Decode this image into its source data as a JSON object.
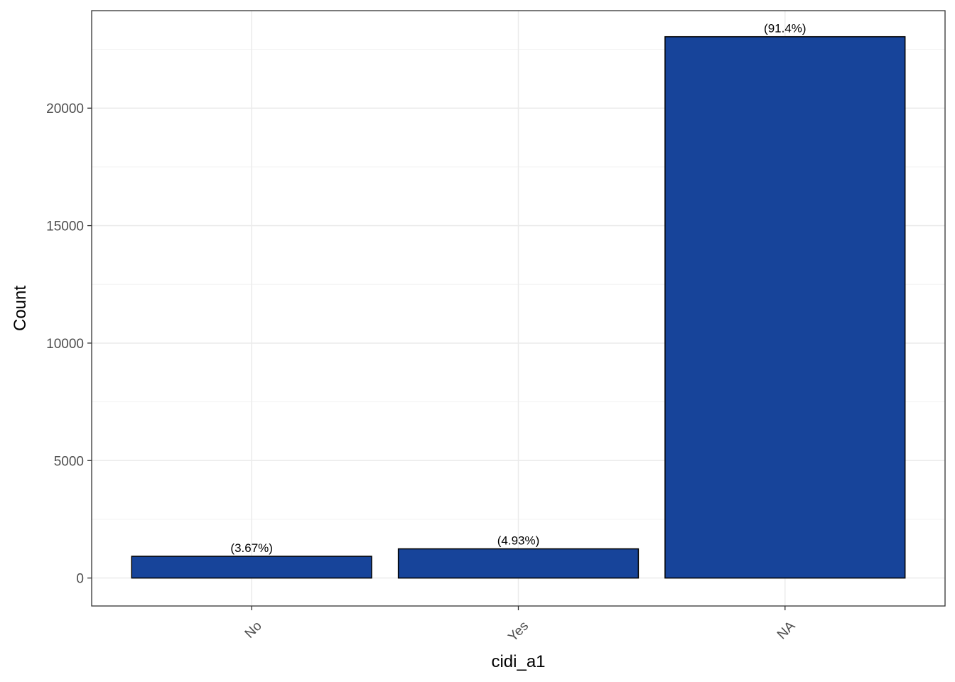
{
  "chart_data": {
    "type": "bar",
    "xlabel": "cidi_a1",
    "ylabel": "Count",
    "categories": [
      "No",
      "Yes",
      "NA"
    ],
    "values": [
      925,
      1242,
      23040
    ],
    "bar_labels": [
      "(3.67%)",
      "(4.93%)",
      "(91.4%)"
    ],
    "ylim": [
      -1190,
      24150
    ],
    "yticks": [
      0,
      5000,
      10000,
      15000,
      20000
    ],
    "ytick_labels": [
      "0",
      "5000",
      "10000",
      "15000",
      "20000"
    ],
    "grid": true,
    "legend": "none",
    "colors": {
      "bar_fill": "#17449A",
      "bar_outline": "#000000",
      "grid_major": "#EBEBEB",
      "grid_minor": "#F3F3F3",
      "panel_border": "#333333"
    }
  }
}
